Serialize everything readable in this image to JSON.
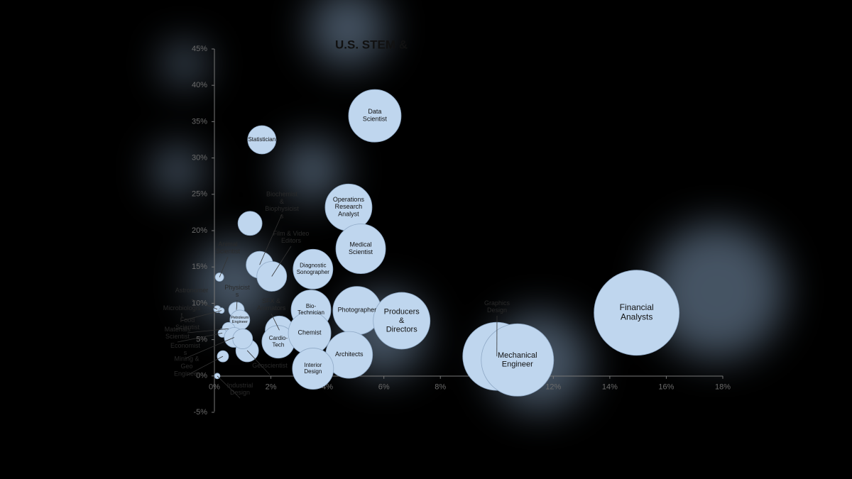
{
  "chart_data": {
    "type": "bubble",
    "title": "U.S. STEM &",
    "color": "#bfd6ee",
    "labels": [
      "Data\nScientist",
      "Statistician",
      "Operations\nResearch\nAnalyst",
      "Medical\nScientist",
      null,
      "Biochemist\n&\nBiophysicist\ns",
      "Film & Video\nEditors",
      "Animal\nScientist",
      "Diagnostic\nSonographer",
      "Astronomer",
      "Physicist\ns",
      "Petroleum\nEngineer",
      "Bio-\nTechnician",
      "Photographer",
      "Producers\n&\nDirectors",
      "SFX &\nAnimators",
      "Cardio-\nTech",
      "Chemist",
      "Architects",
      "Interior\nDesign",
      "Geoscientist",
      "Microbiologis\nt",
      "Food\nScientist",
      "Materials\nScientist",
      "Economist\ns",
      null,
      "Mining &\nGeo\nEngineer",
      "Industrial\nDesign",
      "Graphics\nDesign",
      "Mechanical\nEngineer",
      "Financial\nAnalysts"
    ],
    "x": [
      5.68,
      1.68,
      4.75,
      5.18,
      1.26,
      1.6,
      2.03,
      0.18,
      3.49,
      0.1,
      0.78,
      0.9,
      3.42,
      5.05,
      6.63,
      2.3,
      2.26,
      3.37,
      4.77,
      3.49,
      1.16,
      0.25,
      0.5,
      0.28,
      0.7,
      1.0,
      0.3,
      0.1,
      10.0,
      10.73,
      14.95
    ],
    "values": [
      35.8,
      32.5,
      23.2,
      17.5,
      21.0,
      15.3,
      13.7,
      13.6,
      14.7,
      9.2,
      9.1,
      7.7,
      9.1,
      9.0,
      7.6,
      6.3,
      4.7,
      5.9,
      2.9,
      1.0,
      3.5,
      9.0,
      6.5,
      5.9,
      5.3,
      5.1,
      2.7,
      0,
      2.7,
      2.2,
      8.7
    ],
    "sizes": [
      37,
      20,
      33,
      35,
      17,
      19,
      21,
      6,
      28,
      5,
      11,
      14,
      28,
      34,
      40,
      20,
      23,
      30,
      33,
      29,
      16,
      4,
      9,
      6,
      14,
      14,
      8,
      4,
      48,
      51,
      60
    ],
    "xlim": [
      0,
      18
    ],
    "xticks": [
      {
        "value": 0,
        "label": "0%"
      },
      {
        "value": 2,
        "label": "2%"
      },
      {
        "value": 4,
        "label": "4%"
      },
      {
        "value": 6,
        "label": "6%"
      },
      {
        "value": 8,
        "label": "8%"
      },
      {
        "value": 10,
        "label": "10%"
      },
      {
        "value": 12,
        "label": "12%"
      },
      {
        "value": 14,
        "label": "14%"
      },
      {
        "value": 16,
        "label": "16%"
      },
      {
        "value": 18,
        "label": "18%"
      }
    ],
    "ylim": [
      -5,
      45
    ],
    "yticks": [
      {
        "value": -5,
        "label": "-5%"
      },
      {
        "value": 0,
        "label": "0%"
      },
      {
        "value": 5,
        "label": "5%"
      },
      {
        "value": 10,
        "label": "10%"
      },
      {
        "value": 15,
        "label": "15%"
      },
      {
        "value": 20,
        "label": "20%"
      },
      {
        "value": 25,
        "label": "25%"
      },
      {
        "value": 30,
        "label": "30%"
      },
      {
        "value": 35,
        "label": "35%"
      },
      {
        "value": 40,
        "label": "40%"
      },
      {
        "value": 45,
        "label": "45%"
      }
    ]
  }
}
